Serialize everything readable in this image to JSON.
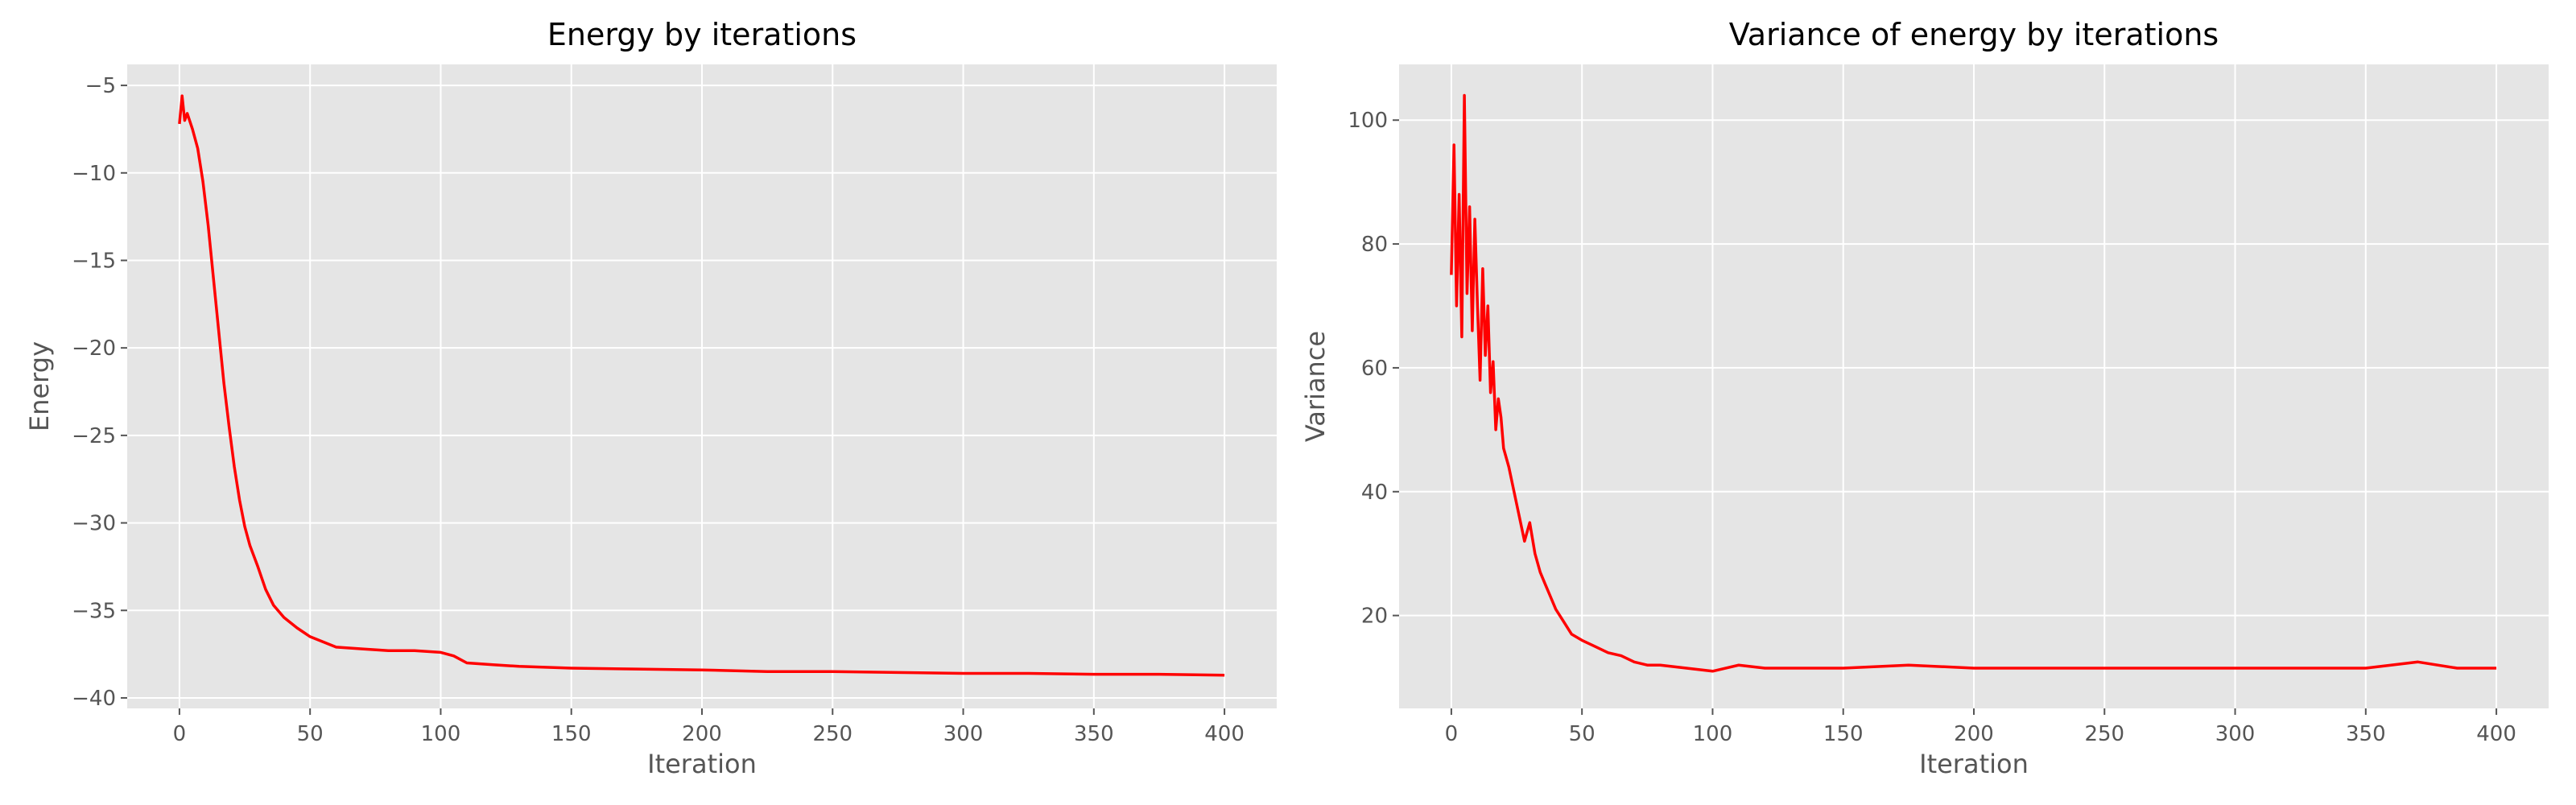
{
  "chart_data": [
    {
      "type": "line",
      "title": "Energy by iterations",
      "xlabel": "Iteration",
      "ylabel": "Energy",
      "xlim": [
        -20,
        420
      ],
      "ylim": [
        -40.6,
        -3.8
      ],
      "xticks": [
        0,
        50,
        100,
        150,
        200,
        250,
        300,
        350,
        400
      ],
      "yticks": [
        -40,
        -35,
        -30,
        -25,
        -20,
        -15,
        -10,
        -5
      ],
      "ytick_labels": [
        "−40",
        "−35",
        "−30",
        "−25",
        "−20",
        "−15",
        "−10",
        "−5"
      ],
      "grid": true,
      "legend": "none",
      "line_color": "#ff0000",
      "background": "#e5e5e5",
      "series": [
        {
          "x": [
            0,
            1,
            2,
            3,
            5,
            7,
            9,
            11,
            13,
            15,
            17,
            19,
            21,
            23,
            25,
            27,
            30,
            33,
            36,
            40,
            45,
            50,
            55,
            60,
            70,
            80,
            90,
            100,
            105,
            110,
            120,
            130,
            150,
            175,
            200,
            225,
            250,
            275,
            300,
            325,
            350,
            375,
            400
          ],
          "y": [
            -7.2,
            -5.6,
            -7.0,
            -6.6,
            -7.5,
            -8.6,
            -10.5,
            -13.0,
            -16.0,
            -19.0,
            -22.0,
            -24.5,
            -26.8,
            -28.7,
            -30.2,
            -31.3,
            -32.5,
            -33.8,
            -34.7,
            -35.4,
            -36.0,
            -36.5,
            -36.8,
            -37.1,
            -37.2,
            -37.3,
            -37.3,
            -37.4,
            -37.6,
            -38.0,
            -38.1,
            -38.2,
            -38.3,
            -38.35,
            -38.4,
            -38.5,
            -38.5,
            -38.55,
            -38.6,
            -38.6,
            -38.65,
            -38.65,
            -38.7
          ]
        }
      ]
    },
    {
      "type": "line",
      "title": "Variance of energy by iterations",
      "xlabel": "Iteration",
      "ylabel": "Variance",
      "xlim": [
        -20,
        420
      ],
      "ylim": [
        5,
        109
      ],
      "xticks": [
        0,
        50,
        100,
        150,
        200,
        250,
        300,
        350,
        400
      ],
      "yticks": [
        20,
        40,
        60,
        80,
        100
      ],
      "grid": true,
      "legend": "none",
      "line_color": "#ff0000",
      "background": "#e5e5e5",
      "series": [
        {
          "x": [
            0,
            1,
            2,
            3,
            4,
            5,
            6,
            7,
            8,
            9,
            10,
            11,
            12,
            13,
            14,
            15,
            16,
            17,
            18,
            19,
            20,
            22,
            24,
            26,
            28,
            30,
            32,
            34,
            36,
            38,
            40,
            43,
            46,
            50,
            55,
            60,
            65,
            70,
            75,
            80,
            90,
            100,
            110,
            120,
            130,
            150,
            175,
            200,
            225,
            250,
            275,
            300,
            325,
            350,
            370,
            385,
            400
          ],
          "y": [
            75,
            96,
            70,
            88,
            65,
            104,
            72,
            86,
            66,
            84,
            70,
            58,
            76,
            62,
            70,
            56,
            61,
            50,
            55,
            52,
            47,
            44,
            40,
            36,
            32,
            35,
            30,
            27,
            25,
            23,
            21,
            19,
            17,
            16,
            15,
            14,
            13.5,
            12.5,
            12,
            12,
            11.5,
            11,
            12,
            11.5,
            11.5,
            11.5,
            12,
            11.5,
            11.5,
            11.5,
            11.5,
            11.5,
            11.5,
            11.5,
            12.5,
            11.5,
            11.5
          ]
        }
      ]
    }
  ]
}
